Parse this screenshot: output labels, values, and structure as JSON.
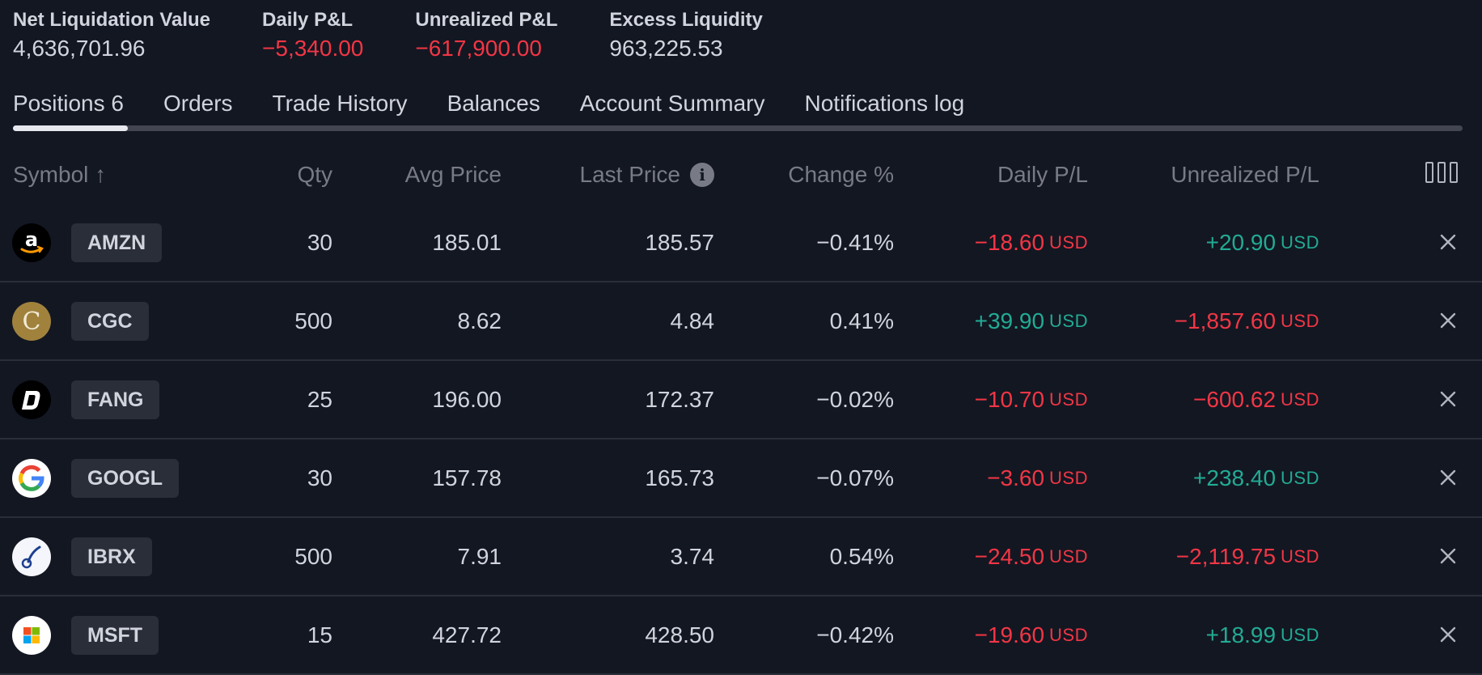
{
  "summary": [
    {
      "label": "Net Liquidation Value",
      "value": "4,636,701.96",
      "tone": "neutral"
    },
    {
      "label": "Daily P&L",
      "value": "−5,340.00",
      "tone": "neg"
    },
    {
      "label": "Unrealized P&L",
      "value": "−617,900.00",
      "tone": "neg"
    },
    {
      "label": "Excess Liquidity",
      "value": "963,225.53",
      "tone": "neutral"
    }
  ],
  "tabs": [
    "Positions 6",
    "Orders",
    "Trade History",
    "Balances",
    "Account Summary",
    "Notifications log"
  ],
  "active_tab": "Positions 6",
  "columns": {
    "symbol": "Symbol ↑",
    "qty": "Qty",
    "avg_price": "Avg Price",
    "last_price": "Last Price",
    "change_pct": "Change %",
    "daily_pl": "Daily P/L",
    "unrealized_pl": "Unrealized P/L"
  },
  "rows": [
    {
      "symbol": "AMZN",
      "qty": "30",
      "avg_price": "185.01",
      "last_price": "185.57",
      "change_pct": "−0.41%",
      "daily_pl": "−18.60",
      "daily_unit": "USD",
      "daily_tone": "neg",
      "unrealized_pl": "+20.90",
      "unrealized_unit": "USD",
      "unrealized_tone": "pos",
      "logo": "amazon-logo"
    },
    {
      "symbol": "CGC",
      "qty": "500",
      "avg_price": "8.62",
      "last_price": "4.84",
      "change_pct": "0.41%",
      "daily_pl": "+39.90",
      "daily_unit": "USD",
      "daily_tone": "pos",
      "unrealized_pl": "−1,857.60",
      "unrealized_unit": "USD",
      "unrealized_tone": "neg",
      "logo": "canopy-logo"
    },
    {
      "symbol": "FANG",
      "qty": "25",
      "avg_price": "196.00",
      "last_price": "172.37",
      "change_pct": "−0.02%",
      "daily_pl": "−10.70",
      "daily_unit": "USD",
      "daily_tone": "neg",
      "unrealized_pl": "−600.62",
      "unrealized_unit": "USD",
      "unrealized_tone": "neg",
      "logo": "diamondback-logo"
    },
    {
      "symbol": "GOOGL",
      "qty": "30",
      "avg_price": "157.78",
      "last_price": "165.73",
      "change_pct": "−0.07%",
      "daily_pl": "−3.60",
      "daily_unit": "USD",
      "daily_tone": "neg",
      "unrealized_pl": "+238.40",
      "unrealized_unit": "USD",
      "unrealized_tone": "pos",
      "logo": "google-logo"
    },
    {
      "symbol": "IBRX",
      "qty": "500",
      "avg_price": "7.91",
      "last_price": "3.74",
      "change_pct": "0.54%",
      "daily_pl": "−24.50",
      "daily_unit": "USD",
      "daily_tone": "neg",
      "unrealized_pl": "−2,119.75",
      "unrealized_unit": "USD",
      "unrealized_tone": "neg",
      "logo": "immunitybio-logo"
    },
    {
      "symbol": "MSFT",
      "qty": "15",
      "avg_price": "427.72",
      "last_price": "428.50",
      "change_pct": "−0.42%",
      "daily_pl": "−19.60",
      "daily_unit": "USD",
      "daily_tone": "neg",
      "unrealized_pl": "+18.99",
      "unrealized_unit": "USD",
      "unrealized_tone": "pos",
      "logo": "microsoft-logo"
    }
  ],
  "colors": {
    "background": "#131722",
    "negative": "#f23645",
    "positive": "#22ab94",
    "muted": "#787b86"
  }
}
